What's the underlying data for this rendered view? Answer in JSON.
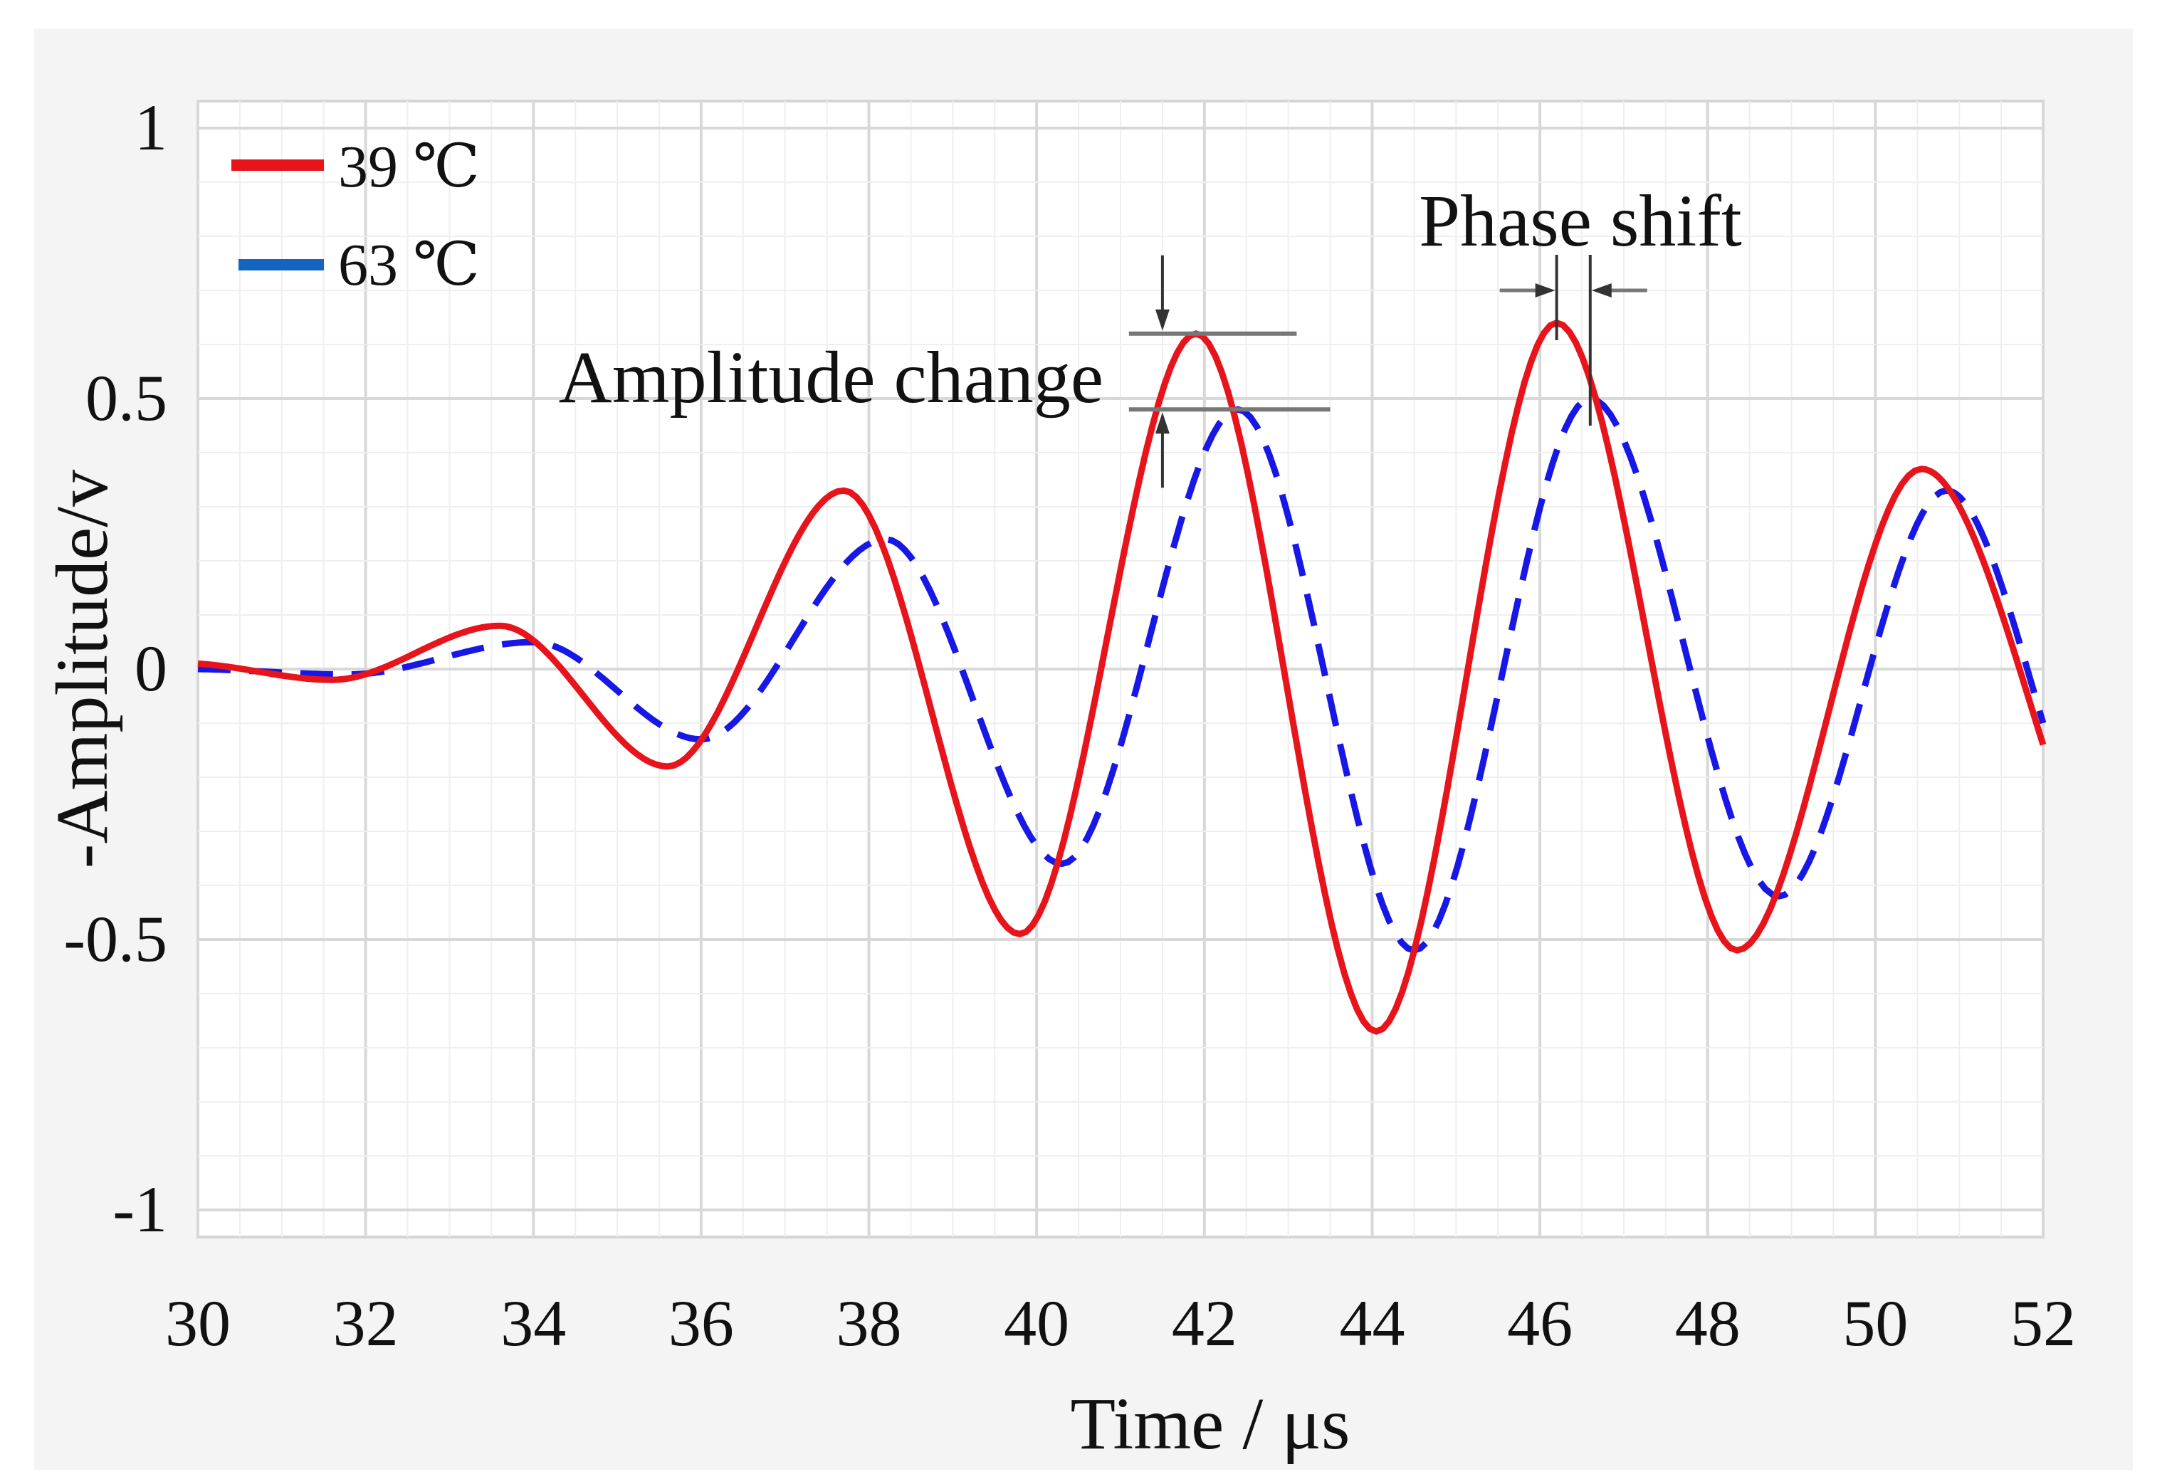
{
  "chart_data": {
    "type": "line",
    "title": "",
    "xlabel": "Time / μs",
    "ylabel": "-Amplitude/v",
    "xlim": [
      30,
      52
    ],
    "ylim": [
      -1,
      1
    ],
    "x_ticks": [
      30,
      32,
      34,
      36,
      38,
      40,
      42,
      44,
      46,
      48,
      50,
      52
    ],
    "x_tick_labels": [
      "30",
      "32",
      "34",
      "36",
      "38",
      "40",
      "42",
      "44",
      "46",
      "48",
      "50",
      "52"
    ],
    "y_ticks": [
      1,
      0.5,
      0,
      -0.5,
      -1
    ],
    "y_tick_labels": [
      "1",
      "0.5",
      "0",
      "-0.5",
      "-1"
    ],
    "grid": true,
    "legend_position": "top-left",
    "series": [
      {
        "name": "39 ℃",
        "color": "#e8141c",
        "style": "solid",
        "x": [
          30,
          31.6,
          33.6,
          35.6,
          37.7,
          39.8,
          41.9,
          44.05,
          46.2,
          48.35,
          50.55,
          52
        ],
        "y": [
          0.01,
          -0.02,
          0.08,
          -0.18,
          0.33,
          -0.49,
          0.62,
          -0.67,
          0.64,
          -0.52,
          0.37,
          -0.14
        ]
      },
      {
        "name": "63 ℃",
        "color": "#1717e6",
        "style": "dashed",
        "x": [
          30,
          31.8,
          34.0,
          36.0,
          38.2,
          40.3,
          42.4,
          44.5,
          46.6,
          48.85,
          50.85,
          52
        ],
        "y": [
          0.0,
          -0.01,
          0.05,
          -0.13,
          0.24,
          -0.36,
          0.48,
          -0.52,
          0.5,
          -0.42,
          0.33,
          -0.1
        ]
      }
    ],
    "annotations": [
      {
        "text": "Amplitude change",
        "x": 42.4,
        "y_top": 0.62,
        "y_bottom": 0.48
      },
      {
        "text": "Phase shift",
        "x_left": 46.2,
        "x_right": 46.6,
        "y": 0.7
      }
    ]
  },
  "legend": {
    "items": [
      {
        "label": "39 ℃",
        "color": "#e8141c"
      },
      {
        "label": "63 ℃",
        "color": "#1565c0"
      }
    ]
  }
}
